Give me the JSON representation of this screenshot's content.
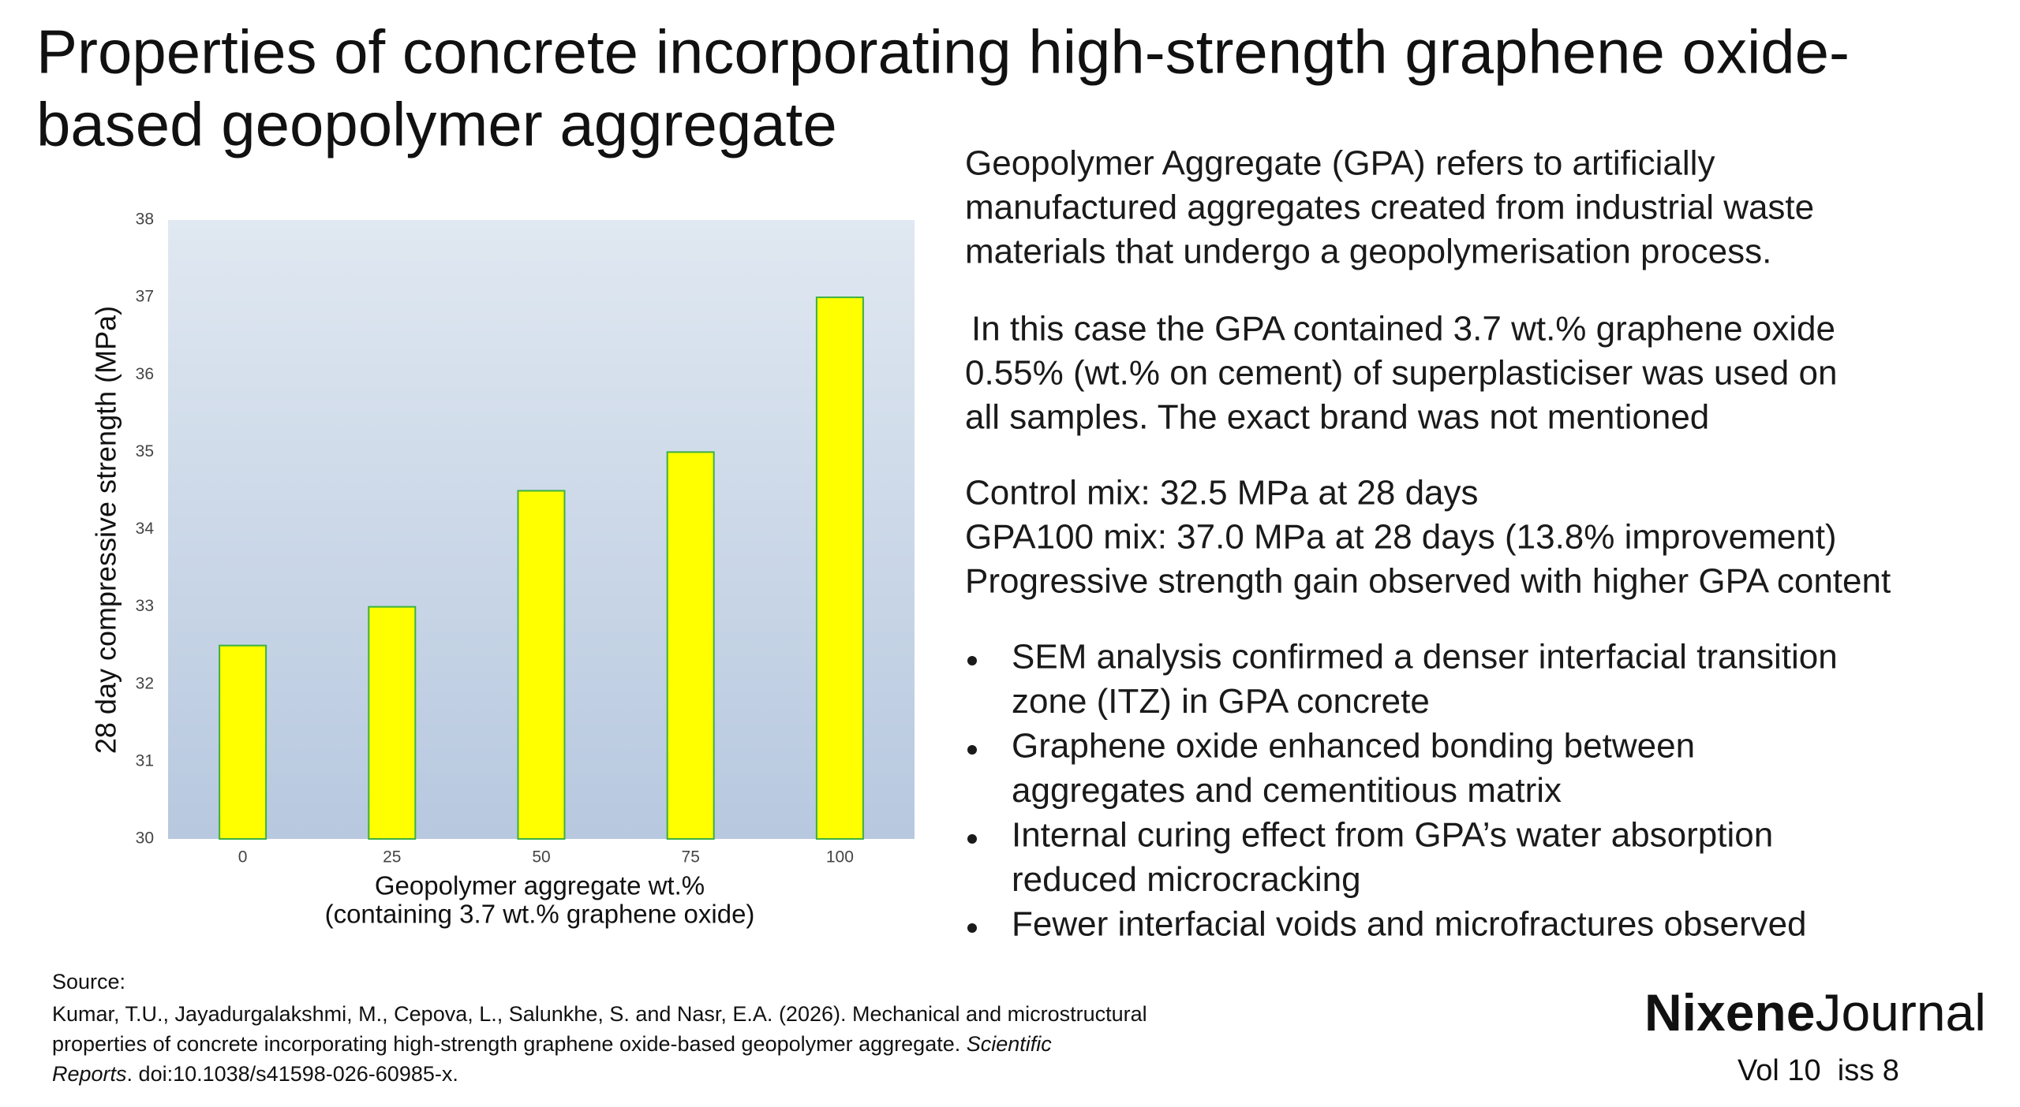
{
  "title": [
    "Properties of concrete incorporating high-strength graphene oxide-",
    "based geopolymer aggregate"
  ],
  "chart_data": {
    "type": "bar",
    "categories": [
      "0",
      "25",
      "50",
      "75",
      "100"
    ],
    "values": [
      32.5,
      33,
      34.5,
      35,
      37
    ],
    "color": "#ffff00",
    "edge_color": "#3cb043",
    "ylim": [
      30,
      38
    ],
    "yticks": [
      30,
      31,
      32,
      33,
      34,
      35,
      36,
      37,
      38
    ],
    "ylabel": "28 day compressive strength (MPa)",
    "xlabel": [
      "Geopolymer aggregate wt.%",
      "(containing 3.7 wt.% graphene oxide)"
    ],
    "grid": false
  },
  "body": {
    "paragraphs": [
      [
        "Geopolymer Aggregate (GPA) refers to artificially",
        "manufactured aggregates created from industrial waste",
        "materials that undergo a geopolymerisation process."
      ],
      [
        "In this case the GPA contained 3.7 wt.% graphene oxide",
        "0.55% (wt.% on cement) of superplasticiser was used on",
        "all samples. The exact brand was not mentioned"
      ],
      [
        "Control mix: 32.5 MPa at 28 days",
        "GPA100 mix: 37.0 MPa at 28 days (13.8% improvement)",
        "Progressive strength gain observed with higher GPA content"
      ]
    ],
    "bullets": [
      [
        "SEM analysis confirmed a denser interfacial transition",
        "zone (ITZ) in GPA concrete"
      ],
      [
        "Graphene oxide enhanced bonding between",
        "aggregates and cementitious matrix"
      ],
      [
        "Internal curing effect from GPA’s water absorption",
        "reduced microcracking"
      ],
      [
        "Fewer interfacial voids and microfractures observed"
      ]
    ]
  },
  "source": {
    "label": "Source:",
    "line1": "Kumar, T.U., Jayadurgalakshmi, M., Cepova, L., Salunkhe, S. and Nasr, E.A. (2026). Mechanical and microstructural",
    "line2": "properties of concrete incorporating high-strength graphene oxide-based geopolymer aggregate. ",
    "journal_a": "Scientific",
    "journal_b": "Reports",
    "rest": ". doi:10.1038/s41598-026-60985-x."
  },
  "brand": {
    "bold": "Nixene",
    "regular": "Journal",
    "issue": "Vol 10  iss 8"
  }
}
